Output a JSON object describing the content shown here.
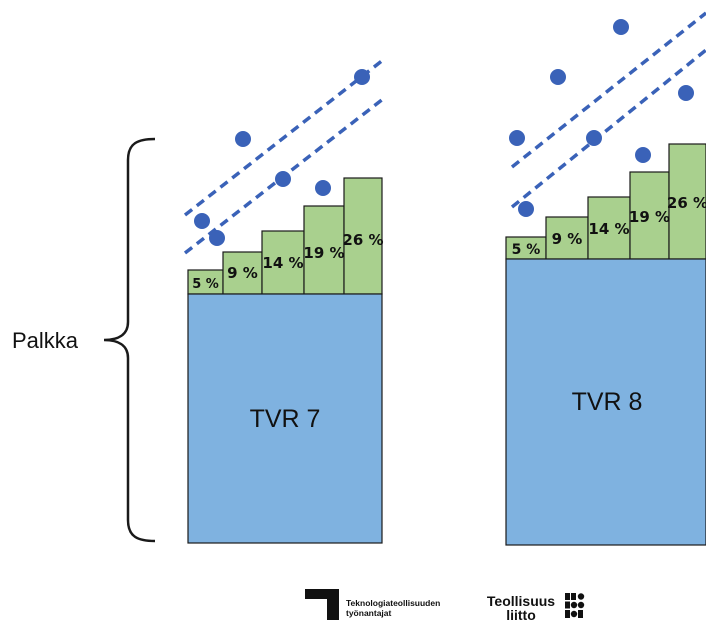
{
  "side_label": "Palkka",
  "columns": [
    {
      "grade_label": "TVR 7",
      "steps": [
        "5 %",
        "9 %",
        "14 %",
        "19 %",
        "26 %"
      ]
    },
    {
      "grade_label": "TVR 8",
      "steps": [
        "5 %",
        "9 %",
        "14 %",
        "19 %",
        "26 %"
      ]
    }
  ],
  "logos": {
    "employer_line1": "Teknologiateollisuuden",
    "employer_line2": "työnantajat",
    "union_line1": "Teollisuus",
    "union_line2": "liitto"
  },
  "colors": {
    "base_fill": "#7fb2e0",
    "step_fill": "#a9d08e",
    "dot": "#3a62b8",
    "dash": "#3a62b8",
    "outline": "#1a1a1a"
  },
  "icons": {
    "employer_logo": "corner-mark-icon",
    "union_logo": "dot-grid-icon"
  }
}
